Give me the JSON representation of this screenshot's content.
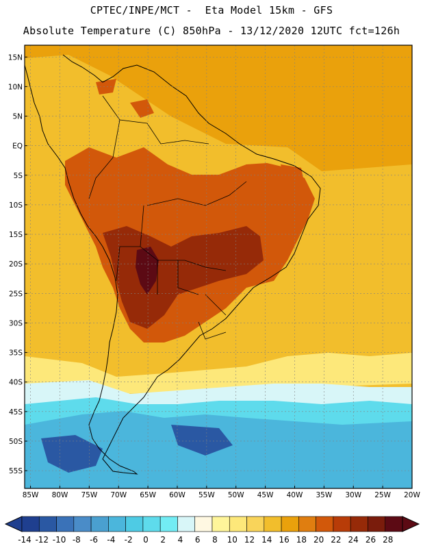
{
  "header": {
    "line1": "CPTEC/INPE/MCT -  Eta Model 15km - GFS",
    "line2": "Absolute Temperature (C) 850hPa - 13/12/2020 12UTC fct=126h"
  },
  "axes": {
    "lat_labels": [
      "15N",
      "10N",
      "5N",
      "EQ",
      "5S",
      "10S",
      "15S",
      "20S",
      "25S",
      "30S",
      "35S",
      "40S",
      "45S",
      "50S",
      "55S"
    ],
    "lat_values": [
      15,
      10,
      5,
      0,
      -5,
      -10,
      -15,
      -20,
      -25,
      -30,
      -35,
      -40,
      -45,
      -50,
      -55
    ],
    "lon_labels": [
      "85W",
      "80W",
      "75W",
      "70W",
      "65W",
      "60W",
      "55W",
      "50W",
      "45W",
      "40W",
      "35W",
      "30W",
      "25W",
      "20W"
    ],
    "lon_values": [
      -85,
      -80,
      -75,
      -70,
      -65,
      -60,
      -55,
      -50,
      -45,
      -40,
      -35,
      -30,
      -25,
      -20
    ],
    "lon_range": [
      -86,
      -20
    ],
    "lat_range": [
      -58,
      17
    ]
  },
  "colorbar": {
    "labels": [
      "-14",
      "-12",
      "-10",
      "-8",
      "-6",
      "-4",
      "-2",
      "0",
      "2",
      "4",
      "6",
      "8",
      "10",
      "12",
      "14",
      "16",
      "18",
      "20",
      "22",
      "24",
      "26",
      "28"
    ],
    "colors": [
      "#1f3f8f",
      "#2a58a3",
      "#3a72b8",
      "#4a8cc8",
      "#4aa0d0",
      "#4bb6dc",
      "#4ecbe4",
      "#5edbec",
      "#72ecf4",
      "#d8f6f8",
      "#fff8e2",
      "#fff59a",
      "#fde87a",
      "#f9d45a",
      "#f2be2c",
      "#eaa10c",
      "#e07e10",
      "#d2580a",
      "#b83c08",
      "#962a08",
      "#7a1c0c",
      "#5c0a14"
    ]
  },
  "map": {
    "colors": {
      "ocean_warm": "#eaa10c",
      "ocean_mid": "#f2be2c",
      "land_hot": "#d2580a",
      "land_very_hot": "#962a08",
      "land_extreme": "#5c0a14",
      "cool_band": "#fde87a",
      "cold_band": "#d8f6f8",
      "cyan": "#5edbec",
      "blue": "#4bb6dc",
      "deep_blue": "#2a58a3",
      "coast": "#000000",
      "grid": "#808080"
    }
  }
}
